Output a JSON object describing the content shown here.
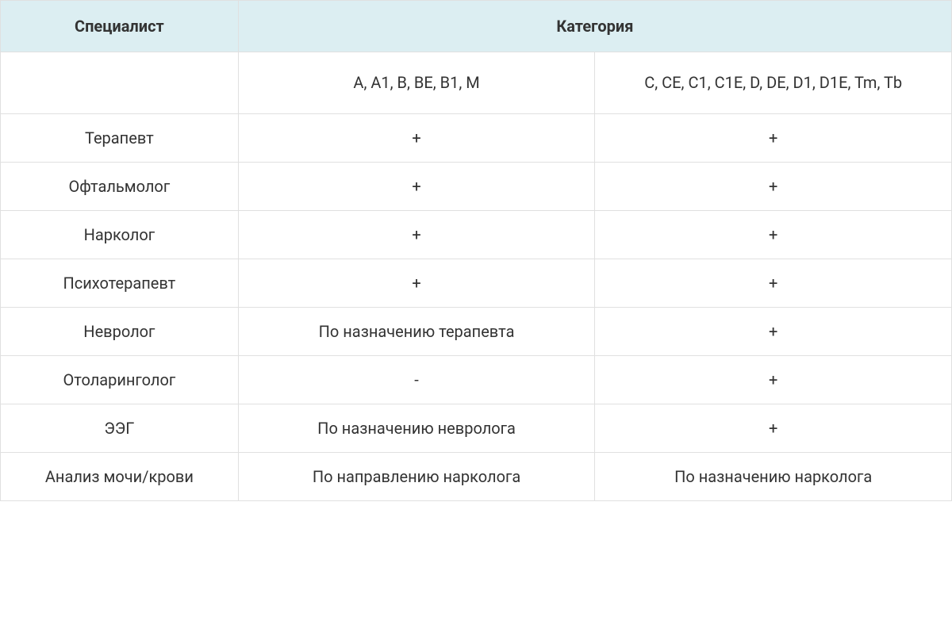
{
  "table": {
    "headers": {
      "specialist": "Специалист",
      "category": "Категория"
    },
    "subheaders": {
      "cat1": "A, A1, B, BE, B1, M",
      "cat2": "C, CE, C1, C1E, D, DE, D1, D1E, Tm, Tb"
    },
    "rows": [
      {
        "specialist": "Терапевт",
        "cat1": "+",
        "cat2": "+"
      },
      {
        "specialist": "Офтальмолог",
        "cat1": "+",
        "cat2": "+"
      },
      {
        "specialist": "Нарколог",
        "cat1": "+",
        "cat2": "+"
      },
      {
        "specialist": "Психотерапевт",
        "cat1": "+",
        "cat2": "+"
      },
      {
        "specialist": "Невролог",
        "cat1": "По назначению терапевта",
        "cat2": "+"
      },
      {
        "specialist": "Отоларинголог",
        "cat1": "-",
        "cat2": "+"
      },
      {
        "specialist": "ЭЭГ",
        "cat1": "По назначению невролога",
        "cat2": "+"
      },
      {
        "specialist": "Анализ мочи/крови",
        "cat1": "По направлению нарколога",
        "cat2": "По назначению нарколога"
      }
    ],
    "style": {
      "header_bg": "#dceef2",
      "border_color": "#e0e0e0",
      "text_color": "#333333",
      "font_size": 20,
      "header_font_weight": 700,
      "row_font_weight": 400
    }
  }
}
